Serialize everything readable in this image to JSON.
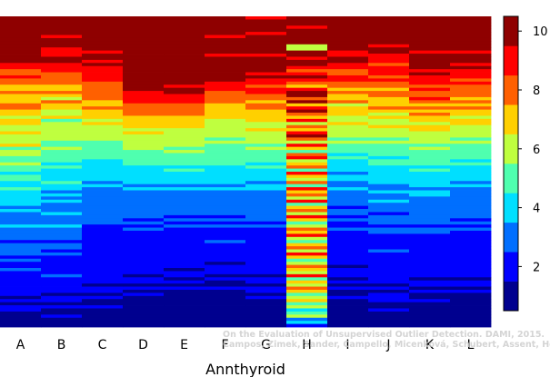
{
  "chart_data": {
    "type": "heatmap",
    "title": "",
    "xlabel": "Annthyroid",
    "ylabel": "",
    "categories": [
      "A",
      "B",
      "C",
      "D",
      "E",
      "F",
      "G",
      "H",
      "I",
      "J",
      "K",
      "L"
    ],
    "colorbar": {
      "min": 0.5,
      "max": 10.5,
      "ticks": [
        2,
        4,
        6,
        8,
        10
      ],
      "colors": [
        "#00008f",
        "#0000ff",
        "#006fff",
        "#00dfff",
        "#4fffaf",
        "#bfff3f",
        "#ffd000",
        "#ff6000",
        "#ff0000",
        "#8f0000"
      ]
    },
    "row_count": 100,
    "row_order": "top to bottom",
    "columns": [
      {
        "name": "A",
        "values": [
          10,
          10,
          10,
          10,
          10,
          10,
          10,
          10,
          10,
          10,
          10,
          10,
          10,
          10,
          10,
          9,
          9,
          8,
          8,
          9,
          8,
          8,
          7,
          7,
          8,
          7,
          7,
          7,
          8,
          8,
          7,
          7,
          6,
          7,
          7,
          6,
          6,
          7,
          6,
          6,
          6,
          7,
          5,
          6,
          6,
          5,
          5,
          6,
          5,
          5,
          4,
          5,
          5,
          4,
          4,
          5,
          4,
          4,
          4,
          4,
          4,
          3,
          4,
          3,
          3,
          3,
          3,
          4,
          3,
          3,
          3,
          3,
          2,
          3,
          3,
          3,
          3,
          2,
          3,
          2,
          2,
          3,
          2,
          2,
          2,
          2,
          2,
          2,
          2,
          2,
          1,
          2,
          1,
          2,
          2,
          1,
          1,
          1,
          1,
          1
        ]
      },
      {
        "name": "B",
        "values": [
          10,
          10,
          10,
          10,
          10,
          10,
          9,
          10,
          10,
          10,
          9,
          9,
          9,
          10,
          10,
          9,
          9,
          9,
          8,
          8,
          8,
          8,
          7,
          7,
          8,
          7,
          6,
          8,
          7,
          7,
          6,
          6,
          7,
          5,
          6,
          6,
          6,
          6,
          6,
          6,
          5,
          5,
          6,
          5,
          5,
          5,
          5,
          4,
          5,
          4,
          4,
          4,
          4,
          5,
          4,
          4,
          3,
          4,
          3,
          4,
          3,
          3,
          3,
          4,
          3,
          3,
          3,
          4,
          3,
          3,
          3,
          3,
          2,
          3,
          3,
          2,
          3,
          2,
          2,
          2,
          2,
          2,
          2,
          3,
          2,
          2,
          2,
          2,
          2,
          1,
          2,
          2,
          1,
          2,
          1,
          1,
          2,
          1,
          1,
          1
        ]
      },
      {
        "name": "C",
        "values": [
          10,
          10,
          10,
          10,
          10,
          10,
          10,
          10,
          10,
          10,
          10,
          9,
          10,
          10,
          9,
          10,
          9,
          9,
          9,
          9,
          9,
          8,
          8,
          8,
          8,
          8,
          8,
          7,
          7,
          8,
          7,
          7,
          7,
          6,
          7,
          6,
          6,
          6,
          6,
          6,
          5,
          5,
          5,
          5,
          5,
          5,
          4,
          4,
          4,
          4,
          4,
          4,
          4,
          3,
          4,
          3,
          3,
          3,
          3,
          3,
          3,
          3,
          3,
          3,
          3,
          3,
          3,
          2,
          2,
          2,
          2,
          2,
          2,
          2,
          2,
          2,
          2,
          2,
          2,
          2,
          2,
          2,
          2,
          2,
          2,
          2,
          1,
          2,
          2,
          1,
          2,
          1,
          1,
          2,
          1,
          1,
          1,
          1,
          1,
          1
        ]
      },
      {
        "name": "D",
        "values": [
          10,
          10,
          10,
          10,
          10,
          10,
          10,
          10,
          10,
          10,
          10,
          10,
          10,
          10,
          10,
          10,
          10,
          10,
          10,
          10,
          10,
          10,
          10,
          10,
          9,
          9,
          9,
          9,
          8,
          8,
          8,
          8,
          7,
          7,
          7,
          7,
          6,
          7,
          6,
          6,
          6,
          6,
          6,
          5,
          5,
          5,
          5,
          5,
          4,
          4,
          4,
          4,
          4,
          4,
          3,
          4,
          3,
          3,
          3,
          3,
          3,
          3,
          3,
          3,
          3,
          2,
          3,
          2,
          3,
          2,
          2,
          2,
          2,
          2,
          2,
          2,
          2,
          2,
          2,
          2,
          2,
          2,
          2,
          1,
          2,
          2,
          1,
          2,
          1,
          2,
          1,
          1,
          1,
          1,
          1,
          1,
          1,
          1,
          1,
          1
        ]
      },
      {
        "name": "E",
        "values": [
          10,
          10,
          10,
          10,
          10,
          10,
          10,
          10,
          10,
          10,
          10,
          10,
          10,
          10,
          10,
          10,
          10,
          10,
          10,
          10,
          10,
          10,
          9,
          10,
          10,
          9,
          9,
          9,
          8,
          8,
          8,
          8,
          7,
          7,
          7,
          7,
          6,
          6,
          6,
          6,
          6,
          6,
          5,
          6,
          5,
          5,
          5,
          5,
          4,
          5,
          4,
          4,
          4,
          4,
          3,
          4,
          3,
          3,
          3,
          3,
          3,
          3,
          3,
          3,
          2,
          3,
          2,
          3,
          2,
          2,
          2,
          2,
          2,
          2,
          2,
          2,
          2,
          2,
          2,
          2,
          2,
          1,
          2,
          2,
          1,
          2,
          1,
          2,
          1,
          1,
          1,
          1,
          1,
          1,
          1,
          1,
          1,
          1,
          1,
          1
        ]
      },
      {
        "name": "F",
        "values": [
          10,
          10,
          10,
          10,
          10,
          10,
          9,
          10,
          10,
          10,
          10,
          10,
          9,
          10,
          10,
          10,
          10,
          10,
          10,
          10,
          10,
          9,
          9,
          9,
          8,
          8,
          8,
          8,
          7,
          7,
          7,
          7,
          7,
          6,
          6,
          6,
          6,
          6,
          6,
          5,
          6,
          5,
          5,
          5,
          5,
          5,
          5,
          5,
          4,
          4,
          4,
          4,
          4,
          4,
          3,
          4,
          3,
          3,
          3,
          3,
          3,
          3,
          3,
          3,
          2,
          3,
          2,
          3,
          2,
          2,
          2,
          2,
          3,
          2,
          2,
          2,
          2,
          2,
          2,
          1,
          2,
          2,
          2,
          1,
          2,
          1,
          1,
          2,
          1,
          1,
          1,
          1,
          1,
          1,
          1,
          1,
          1,
          1,
          1,
          1
        ]
      },
      {
        "name": "G",
        "values": [
          9,
          10,
          10,
          10,
          10,
          9,
          10,
          10,
          10,
          10,
          10,
          10,
          9,
          10,
          10,
          10,
          10,
          10,
          9,
          10,
          9,
          9,
          8,
          9,
          9,
          8,
          8,
          7,
          8,
          8,
          7,
          7,
          7,
          7,
          6,
          6,
          7,
          6,
          6,
          6,
          6,
          5,
          6,
          5,
          5,
          5,
          5,
          4,
          5,
          4,
          4,
          4,
          4,
          3,
          4,
          4,
          3,
          3,
          3,
          3,
          3,
          3,
          3,
          3,
          3,
          3,
          2,
          3,
          2,
          2,
          2,
          2,
          2,
          2,
          2,
          2,
          2,
          2,
          2,
          2,
          2,
          2,
          2,
          1,
          2,
          2,
          1,
          2,
          2,
          1,
          2,
          1,
          1,
          1,
          1,
          1,
          1,
          1,
          1,
          1
        ]
      },
      {
        "name": "H",
        "values": [
          10,
          10,
          10,
          9,
          10,
          10,
          10,
          10,
          10,
          6,
          6,
          10,
          10,
          9,
          10,
          10,
          9,
          8,
          9,
          10,
          9,
          8,
          7,
          9,
          10,
          10,
          8,
          10,
          7,
          9,
          10,
          8,
          7,
          9,
          6,
          8,
          7,
          9,
          10,
          8,
          6,
          9,
          7,
          5,
          8,
          9,
          6,
          7,
          8,
          5,
          9,
          7,
          6,
          8,
          5,
          9,
          7,
          8,
          6,
          9,
          5,
          7,
          8,
          6,
          9,
          7,
          5,
          6,
          8,
          7,
          9,
          6,
          5,
          7,
          8,
          6,
          9,
          7,
          5,
          6,
          8,
          7,
          6,
          9,
          5,
          7,
          6,
          8,
          7,
          5,
          6,
          7,
          5,
          6,
          4,
          5,
          6,
          3,
          4,
          2
        ]
      },
      {
        "name": "I",
        "values": [
          10,
          10,
          10,
          10,
          10,
          10,
          10,
          10,
          10,
          10,
          10,
          9,
          9,
          10,
          10,
          9,
          9,
          8,
          8,
          9,
          9,
          8,
          8,
          7,
          8,
          7,
          7,
          8,
          6,
          7,
          7,
          7,
          6,
          6,
          7,
          6,
          6,
          6,
          6,
          5,
          6,
          5,
          5,
          5,
          4,
          5,
          4,
          4,
          4,
          4,
          3,
          4,
          4,
          3,
          3,
          4,
          3,
          3,
          3,
          3,
          3,
          2,
          3,
          3,
          2,
          3,
          2,
          2,
          3,
          2,
          2,
          2,
          2,
          2,
          2,
          2,
          2,
          2,
          2,
          2,
          1,
          2,
          2,
          2,
          1,
          2,
          1,
          2,
          1,
          1,
          2,
          1,
          1,
          1,
          1,
          1,
          1,
          1,
          1,
          1
        ]
      },
      {
        "name": "J",
        "values": [
          10,
          10,
          10,
          10,
          10,
          10,
          10,
          10,
          10,
          9,
          10,
          10,
          9,
          9,
          9,
          8,
          9,
          9,
          9,
          8,
          9,
          8,
          8,
          7,
          8,
          8,
          7,
          7,
          7,
          8,
          7,
          6,
          7,
          6,
          6,
          7,
          6,
          6,
          6,
          5,
          6,
          5,
          5,
          5,
          5,
          4,
          5,
          5,
          4,
          4,
          4,
          4,
          4,
          4,
          3,
          3,
          4,
          3,
          3,
          4,
          3,
          3,
          3,
          2,
          3,
          3,
          3,
          2,
          3,
          3,
          2,
          2,
          2,
          2,
          2,
          3,
          2,
          2,
          2,
          2,
          2,
          2,
          2,
          2,
          2,
          2,
          1,
          2,
          1,
          2,
          2,
          2,
          1,
          1,
          2,
          1,
          1,
          1,
          1,
          1
        ]
      },
      {
        "name": "K",
        "values": [
          10,
          10,
          10,
          10,
          10,
          10,
          10,
          10,
          10,
          10,
          10,
          9,
          10,
          10,
          10,
          10,
          10,
          9,
          10,
          9,
          9,
          9,
          8,
          9,
          8,
          8,
          9,
          8,
          7,
          8,
          7,
          8,
          7,
          7,
          6,
          7,
          7,
          6,
          6,
          6,
          6,
          5,
          6,
          5,
          5,
          5,
          5,
          5,
          4,
          5,
          4,
          4,
          4,
          4,
          4,
          3,
          4,
          4,
          3,
          3,
          3,
          3,
          3,
          3,
          3,
          3,
          3,
          2,
          3,
          3,
          2,
          2,
          2,
          2,
          2,
          2,
          2,
          2,
          2,
          2,
          2,
          2,
          2,
          2,
          1,
          2,
          2,
          1,
          2,
          1,
          1,
          2,
          1,
          1,
          1,
          1,
          1,
          1,
          1,
          1
        ]
      },
      {
        "name": "L",
        "values": [
          10,
          10,
          10,
          10,
          10,
          10,
          10,
          10,
          10,
          10,
          10,
          9,
          10,
          10,
          10,
          9,
          10,
          9,
          9,
          9,
          8,
          9,
          8,
          8,
          8,
          8,
          7,
          8,
          7,
          8,
          7,
          7,
          6,
          7,
          7,
          6,
          6,
          6,
          6,
          5,
          6,
          5,
          5,
          5,
          5,
          5,
          4,
          5,
          4,
          4,
          4,
          4,
          4,
          3,
          4,
          3,
          3,
          3,
          3,
          3,
          3,
          3,
          3,
          3,
          3,
          2,
          3,
          2,
          3,
          2,
          2,
          2,
          2,
          2,
          2,
          2,
          2,
          2,
          2,
          2,
          2,
          2,
          2,
          2,
          1,
          2,
          2,
          1,
          2,
          1,
          1,
          1,
          1,
          1,
          1,
          1,
          1,
          1,
          1,
          1
        ]
      }
    ]
  },
  "credit": {
    "line1": "On the Evaluation of Unsupervised Outlier Detection. DAMI, 2015.",
    "line2": "Campos, Zimek, Sander, Campello, Micenková, Schubert, Assent, Houle"
  }
}
